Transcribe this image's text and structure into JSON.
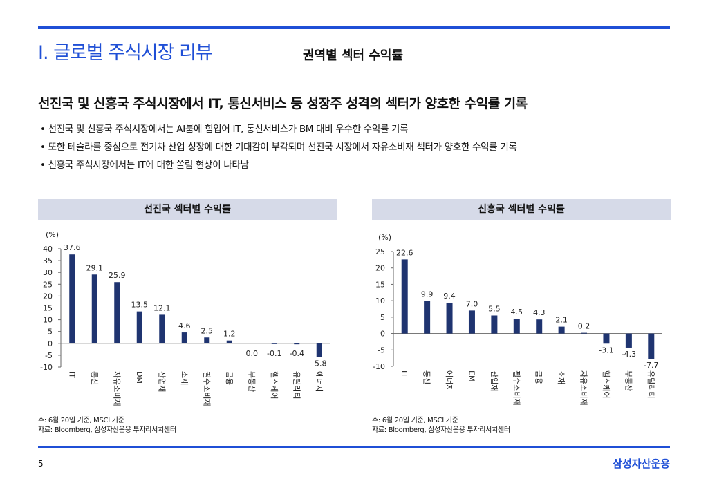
{
  "header": {
    "section_title": "I. 글로벌 주식시장 리뷰",
    "subtitle": "권역별 섹터 수익률"
  },
  "headline": "선진국 및 신흥국 주식시장에서 IT, 통신서비스 등 성장주 성격의 섹터가 양호한 수익률 기록",
  "bullets": [
    "선진국 및 신흥국 주식시장에서는 AI붐에 힘입어 IT, 통신서비스가 BM 대비 우수한 수익률 기록",
    "또한 테슬라를 중심으로 전기차 산업 성장에 대한 기대감이 부각되며 선진국 시장에서 자유소비재 섹터가 양호한 수익률 기록",
    "신흥국 주식시장에서는 IT에 대한 쏠림 현상이 나타남"
  ],
  "panels": {
    "left_title": "선진국 섹터별 수익률",
    "right_title": "신흥국 섹터별 수익률"
  },
  "notes": {
    "left_note": "주: 6월 20일 기준, MSCI 기준",
    "left_source": "자료: Bloomberg, 삼성자산운용 투자리서치센터",
    "right_note": "주: 6월 20일 기준, MSCI 기준",
    "right_source": "자료: Bloomberg, 삼성자산운용 투자리서치센터"
  },
  "footer": {
    "page_number": "5",
    "brand": "삼성자산운용"
  },
  "colors": {
    "accent": "#1f4fd6",
    "bar": "#1f3470",
    "panel_bg": "#d6dae8"
  },
  "chart_data": [
    {
      "type": "bar",
      "title": "선진국 섹터별 수익률",
      "ylabel": "(%)",
      "ylim": [
        -10,
        40
      ],
      "yticks": [
        40,
        35,
        30,
        25,
        20,
        15,
        10,
        5,
        0,
        -5,
        -10
      ],
      "categories": [
        "IT",
        "통신",
        "자유소비재",
        "DM",
        "산업재",
        "소재",
        "필수소비재",
        "금융",
        "부동산",
        "헬스케어",
        "유틸리티",
        "에너지"
      ],
      "values": [
        37.6,
        29.1,
        25.9,
        13.5,
        12.1,
        4.6,
        2.5,
        1.2,
        0.0,
        -0.1,
        -0.4,
        -5.8
      ],
      "labels": [
        "37.6",
        "29.1",
        "25.9",
        "13.5",
        "12.1",
        "4.6",
        "2.5",
        "1.2",
        "0.0",
        "-0.1",
        "-0.4",
        "-5.8"
      ]
    },
    {
      "type": "bar",
      "title": "신흥국 섹터별 수익률",
      "ylabel": "(%)",
      "ylim": [
        -10,
        25
      ],
      "yticks": [
        25,
        20,
        15,
        10,
        5,
        0,
        -5,
        -10
      ],
      "categories": [
        "IT",
        "통신",
        "에너지",
        "EM",
        "산업재",
        "필수소비재",
        "금융",
        "소재",
        "자유소비재",
        "헬스케어",
        "부동산",
        "유틸리티"
      ],
      "values": [
        22.6,
        9.9,
        9.4,
        7.0,
        5.5,
        4.5,
        4.3,
        2.1,
        0.2,
        -3.1,
        -4.3,
        -7.7
      ],
      "labels": [
        "22.6",
        "9.9",
        "9.4",
        "7.0",
        "5.5",
        "4.5",
        "4.3",
        "2.1",
        "0.2",
        "-3.1",
        "-4.3",
        "-7.7"
      ]
    }
  ]
}
